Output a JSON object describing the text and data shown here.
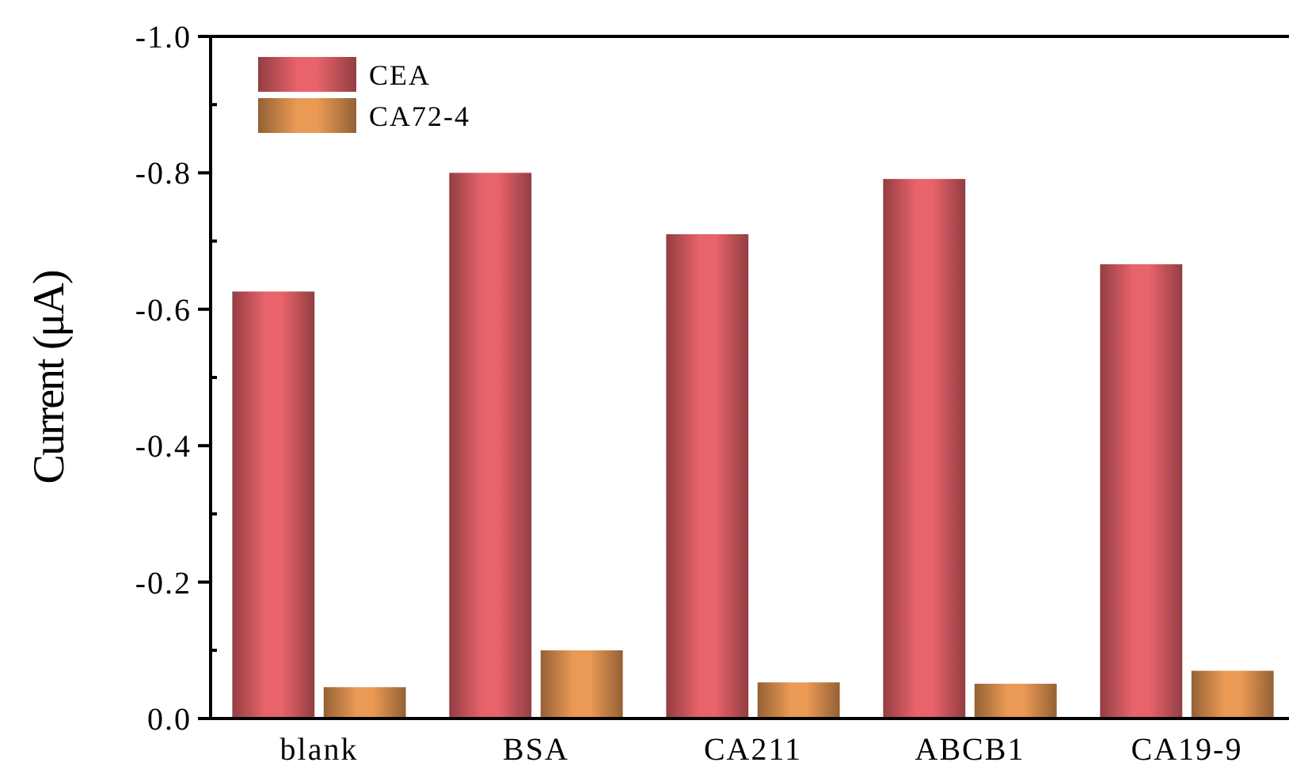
{
  "chart_data": {
    "type": "bar",
    "ylabel": "Current (μA)",
    "categories": [
      "blank",
      "BSA",
      "CA211",
      "ABCB1",
      "CA19-9"
    ],
    "series": [
      {
        "name": "CEA",
        "color": "#e8636a",
        "values": [
          -0.626,
          -0.8,
          -0.71,
          -0.791,
          -0.666
        ]
      },
      {
        "name": "CA72-4",
        "color": "#eb9a55",
        "values": [
          -0.046,
          -0.1,
          -0.053,
          -0.051,
          -0.07
        ]
      }
    ],
    "ylim": [
      0,
      -1.0
    ],
    "yticks": [
      {
        "value": 0,
        "label": "0.0"
      },
      {
        "value": -0.2,
        "label": "-0.2"
      },
      {
        "value": -0.4,
        "label": "-0.4"
      },
      {
        "value": -0.6,
        "label": "-0.6"
      },
      {
        "value": -0.8,
        "label": "-0.8"
      },
      {
        "value": -1.0,
        "label": "-1.0"
      }
    ],
    "legend": "top left",
    "grid": false
  }
}
